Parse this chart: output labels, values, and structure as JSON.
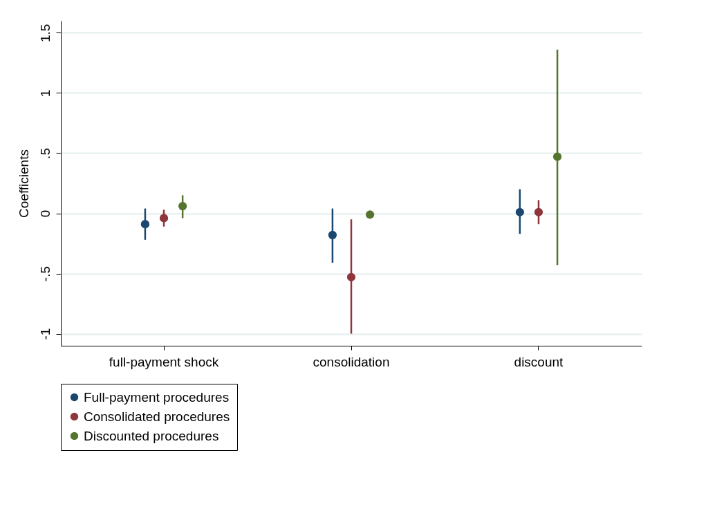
{
  "chart_data": {
    "type": "scatter",
    "ylabel": "Coefficients",
    "categories": [
      "full-payment shock",
      "consolidation",
      "discount"
    ],
    "series": [
      {
        "name": "Full-payment procedures",
        "color": "#1a476f",
        "x": [
          "full-payment shock",
          "consolidation",
          "discount"
        ],
        "values": [
          -0.09,
          -0.18,
          0.01
        ],
        "errors": [
          [
            -0.22,
            0.04
          ],
          [
            -0.41,
            0.04
          ],
          [
            -0.17,
            0.2
          ]
        ]
      },
      {
        "name": "Consolidated procedures",
        "color": "#90353b",
        "x": [
          "full-payment shock",
          "consolidation",
          "discount"
        ],
        "values": [
          -0.04,
          -0.53,
          0.01
        ],
        "errors": [
          [
            -0.11,
            0.03
          ],
          [
            -1.0,
            -0.05
          ],
          [
            -0.09,
            0.11
          ]
        ]
      },
      {
        "name": "Discounted procedures",
        "color": "#55752f",
        "x": [
          "full-payment shock",
          "consolidation",
          "discount"
        ],
        "values": [
          0.06,
          -0.01,
          0.47
        ],
        "errors": [
          [
            -0.04,
            0.15
          ],
          [
            -0.02,
            0.0
          ],
          [
            -0.43,
            1.36
          ]
        ]
      }
    ],
    "ylim": [
      -1.1,
      1.6
    ],
    "yticks": [
      -1,
      {
        "value": -0.5,
        "label": "-.5"
      },
      0,
      {
        "value": 0.5,
        "label": ".5"
      },
      1,
      1.5
    ],
    "grid": "y",
    "legend": "bottom",
    "marker": "circle"
  }
}
